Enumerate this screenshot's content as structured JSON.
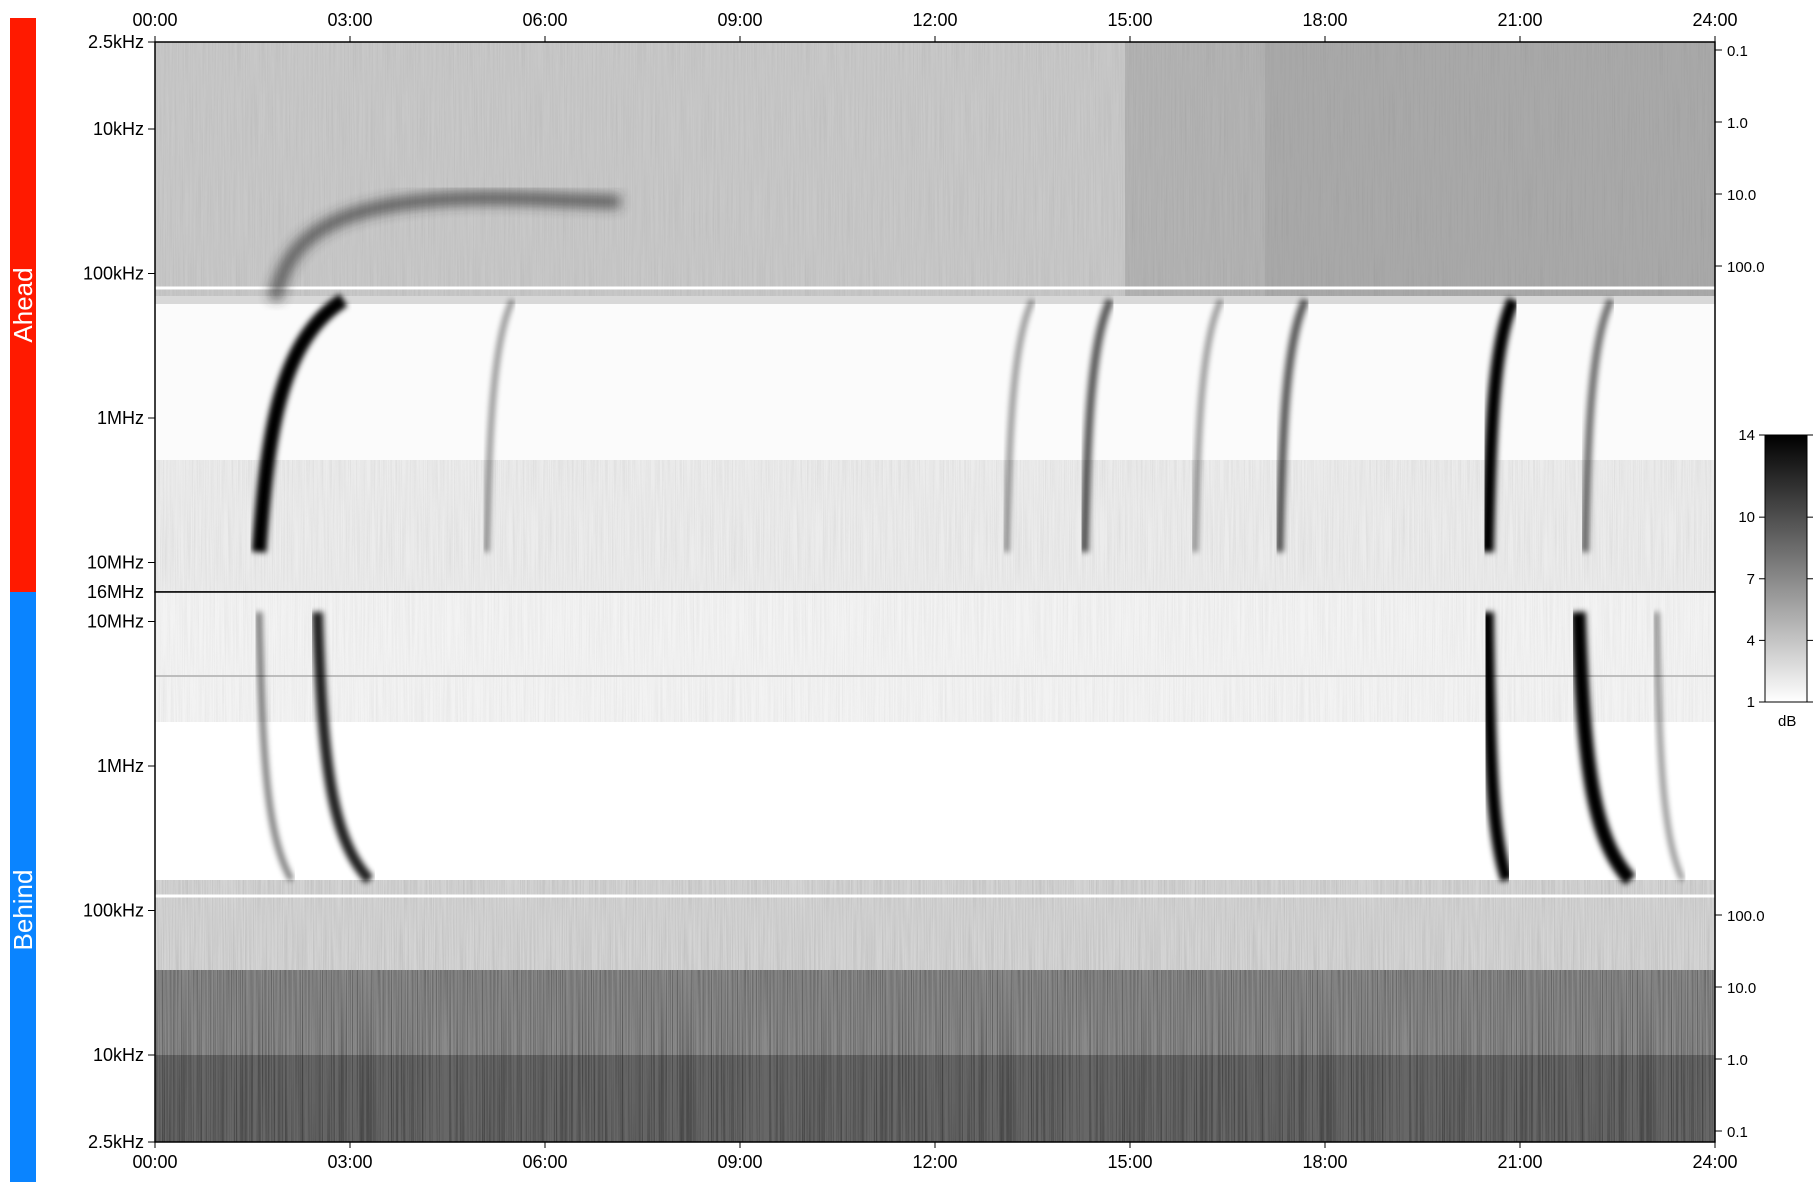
{
  "chart_data": [
    {
      "type": "heatmap",
      "panel": "ahead",
      "side_label": "Ahead",
      "side_color": "#ff1a00",
      "x_ticks": [
        "00:00",
        "03:00",
        "06:00",
        "09:00",
        "12:00",
        "15:00",
        "18:00",
        "21:00",
        "24:00"
      ],
      "x_range_hours": [
        0,
        24
      ],
      "y_scale": "log",
      "y_ticks_left": [
        "2.5kHz",
        "10kHz",
        "100kHz",
        "1MHz",
        "10MHz"
      ],
      "y_bottom_label": "16MHz",
      "y_ticks_right": [
        "0.1",
        "1.0",
        "10.0",
        "100.0"
      ],
      "grid": false,
      "bursts": [
        {
          "start_hour": 1.6,
          "duration_h": 1.3,
          "intensity_db": 14
        },
        {
          "start_hour": 5.1,
          "duration_h": 0.4,
          "intensity_db": 4
        },
        {
          "start_hour": 13.1,
          "duration_h": 0.4,
          "intensity_db": 4
        },
        {
          "start_hour": 14.3,
          "duration_h": 0.4,
          "intensity_db": 7
        },
        {
          "start_hour": 16.0,
          "duration_h": 0.4,
          "intensity_db": 4
        },
        {
          "start_hour": 17.3,
          "duration_h": 0.4,
          "intensity_db": 7
        },
        {
          "start_hour": 20.5,
          "duration_h": 0.4,
          "intensity_db": 12
        },
        {
          "start_hour": 22.0,
          "duration_h": 0.4,
          "intensity_db": 6
        }
      ]
    },
    {
      "type": "heatmap",
      "panel": "behind",
      "side_label": "Behind",
      "side_color": "#0a84ff",
      "x_ticks": [
        "00:00",
        "03:00",
        "06:00",
        "09:00",
        "12:00",
        "15:00",
        "18:00",
        "21:00",
        "24:00"
      ],
      "x_range_hours": [
        0,
        24
      ],
      "y_scale": "log",
      "y_ticks_left": [
        "10MHz",
        "1MHz",
        "100kHz",
        "10kHz",
        "2.5kHz"
      ],
      "y_ticks_right": [
        "100.0",
        "10.0",
        "1.0",
        "0.1"
      ],
      "grid": false,
      "bursts": [
        {
          "start_hour": 1.6,
          "duration_h": 0.5,
          "intensity_db": 5
        },
        {
          "start_hour": 2.5,
          "duration_h": 0.8,
          "intensity_db": 10
        },
        {
          "start_hour": 20.5,
          "duration_h": 0.3,
          "intensity_db": 12
        },
        {
          "start_hour": 21.9,
          "duration_h": 0.8,
          "intensity_db": 14
        },
        {
          "start_hour": 23.1,
          "duration_h": 0.4,
          "intensity_db": 4
        }
      ]
    }
  ],
  "colorbar": {
    "ticks": [
      "14",
      "10",
      "7",
      "4",
      "1"
    ],
    "unit": "dB",
    "colormap": [
      "#ffffff",
      "#000000"
    ]
  }
}
